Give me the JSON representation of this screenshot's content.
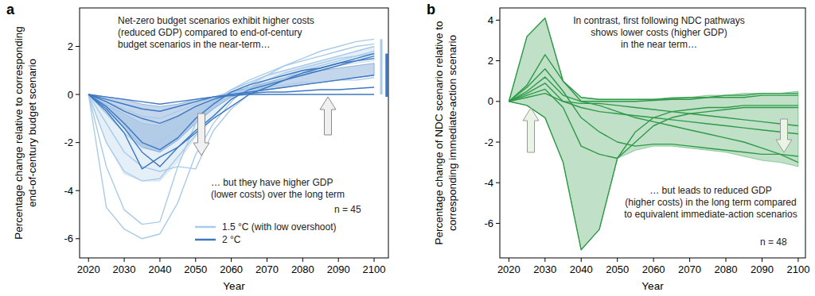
{
  "chart_data": [
    {
      "type": "line",
      "panel": "a",
      "y_label": [
        "Percentage change relative to corresponding",
        "end-of-century budget scenario"
      ],
      "x_label": "Year",
      "x": [
        2020,
        2025,
        2030,
        2035,
        2040,
        2045,
        2050,
        2055,
        2060,
        2065,
        2070,
        2075,
        2080,
        2085,
        2090,
        2095,
        2100
      ],
      "xlim": [
        2017.5,
        2104
      ],
      "xticks": [
        2020,
        2030,
        2040,
        2050,
        2060,
        2070,
        2080,
        2090,
        2100
      ],
      "ylim": [
        -6.8,
        3.6
      ],
      "yticks": [
        -6,
        -4,
        -2,
        0,
        2
      ],
      "grid": false,
      "legend": "lower left",
      "annotations": [
        {
          "text": [
            "Net-zero budget scenarios exhibit higher costs",
            "(reduced GDP) compared to end-of-century",
            "budget scenarios in the near-term…"
          ]
        },
        {
          "text": [
            "… but they have higher GDP",
            "(lower costs) over the long term"
          ]
        },
        {
          "text": [
            "n = 45"
          ]
        }
      ],
      "series": [
        {
          "type": "area",
          "color": "#a9cbe8",
          "values": [
            0,
            -0.4,
            -0.8,
            -1.2,
            -1.3,
            -0.9,
            -0.5,
            -0.2,
            0.2,
            0.5,
            0.8,
            1.0,
            1.2,
            1.4,
            1.6,
            1.8,
            2.0
          ],
          "lower": [
            0,
            -2.0,
            -3.3,
            -3.6,
            -3.6,
            -2.8,
            -1.8,
            -1.0,
            -0.2,
            0.2,
            0.4,
            0.6,
            0.8,
            1.0,
            1.2,
            1.3,
            1.4
          ]
        },
        {
          "type": "area",
          "color": "#3d78c0",
          "values": [
            0,
            -0.1,
            -0.2,
            -0.4,
            -0.5,
            -0.4,
            -0.2,
            -0.1,
            0.1,
            0.3,
            0.5,
            0.7,
            0.9,
            1.0,
            1.1,
            1.2,
            1.3
          ],
          "lower": [
            0,
            -0.6,
            -1.4,
            -2.2,
            -2.4,
            -1.9,
            -1.2,
            -0.6,
            -0.1,
            0.1,
            0.2,
            0.3,
            0.4,
            0.5,
            0.6,
            0.7,
            0.8
          ]
        },
        {
          "type": "line",
          "name": "1.5 °C (with low overshoot)",
          "color": "#a9cbe8",
          "values": [
            0,
            -4.7,
            -5.6,
            -6.0,
            -5.8,
            -4.5,
            -2.5,
            -1.2,
            -0.3,
            0.4,
            0.8,
            1.2,
            1.5,
            1.8,
            2.0,
            2.2,
            2.3
          ]
        },
        {
          "type": "line",
          "color": "#a9cbe8",
          "values": [
            0,
            -3.0,
            -4.8,
            -5.4,
            -5.3,
            -3.0,
            -1.2,
            -0.3,
            0.2,
            0.6,
            0.9,
            1.2,
            1.4,
            1.6,
            1.8,
            2.0,
            2.1
          ]
        },
        {
          "type": "line",
          "color": "#a9cbe8",
          "values": [
            0,
            -2.0,
            -3.2,
            -3.6,
            -3.5,
            -2.6,
            -1.7,
            -0.9,
            -0.2,
            0.3,
            0.6,
            0.9,
            1.1,
            1.3,
            1.5,
            1.6,
            1.7
          ]
        },
        {
          "type": "line",
          "color": "#a9cbe8",
          "values": [
            0,
            -1.2,
            -2.4,
            -3.0,
            -3.2,
            -3.0,
            -3.1,
            -1.5,
            -0.6,
            0.0,
            0.4,
            0.7,
            1.0,
            1.2,
            1.4,
            1.6,
            1.8
          ]
        },
        {
          "type": "line",
          "color": "#a9cbe8",
          "values": [
            0,
            -0.8,
            -1.6,
            -2.2,
            -2.0,
            -1.4,
            -0.8,
            -0.3,
            0.2,
            0.5,
            0.8,
            1.0,
            1.2,
            1.4,
            1.6,
            1.8,
            2.0
          ]
        },
        {
          "type": "line",
          "color": "#a9cbe8",
          "values": [
            0,
            -0.3,
            -0.6,
            -0.9,
            -1.0,
            -0.7,
            -0.4,
            -0.1,
            0.1,
            0.2,
            0.3,
            0.4,
            0.5,
            0.5,
            0.6,
            0.6,
            0.7
          ]
        },
        {
          "type": "line",
          "name": "2 °C",
          "color": "#3d78c0",
          "values": [
            0,
            -0.5,
            -1.2,
            -2.0,
            -2.3,
            -1.8,
            -1.0,
            -0.4,
            0.1,
            0.4,
            0.6,
            0.8,
            1.0,
            1.1,
            1.3,
            1.4,
            1.5
          ]
        },
        {
          "type": "line",
          "color": "#3d78c0",
          "values": [
            0,
            -0.7,
            -1.6,
            -3.1,
            -2.6,
            -2.2,
            -1.5,
            -0.9,
            -0.2,
            0.2,
            0.4,
            0.6,
            0.8,
            1.0,
            1.2,
            1.4,
            1.6
          ]
        },
        {
          "type": "line",
          "color": "#3d78c0",
          "values": [
            0,
            -0.3,
            -0.7,
            -1.0,
            -1.2,
            -0.9,
            -0.5,
            -0.2,
            0.0,
            0.1,
            0.2,
            0.3,
            0.4,
            0.5,
            0.6,
            0.7,
            0.8
          ]
        },
        {
          "type": "line",
          "color": "#3d78c0",
          "values": [
            0,
            -0.2,
            -0.4,
            -0.6,
            -0.7,
            -0.5,
            -0.3,
            -0.1,
            0.0,
            0.05,
            0.1,
            0.1,
            0.15,
            0.2,
            0.2,
            0.25,
            0.3
          ]
        },
        {
          "type": "line",
          "color": "#3d78c0",
          "values": [
            0,
            -0.6,
            -1.4,
            -2.4,
            -3.0,
            -2.2,
            -1.6,
            -1.0,
            -0.5,
            0.0,
            0.3,
            0.6,
            0.9,
            1.1,
            1.3,
            1.5,
            1.7
          ]
        },
        {
          "type": "line",
          "color": "#3d78c0",
          "values": [
            0,
            -0.1,
            -0.2,
            -0.3,
            -0.4,
            -0.3,
            -0.2,
            -0.1,
            -0.05,
            0,
            0,
            0,
            0,
            0,
            0,
            0,
            0
          ]
        }
      ],
      "range_bars": [
        {
          "x": 2102,
          "low": 0.0,
          "high": 2.3,
          "color": "#a9cbe8"
        },
        {
          "x": 2103.5,
          "low": -0.1,
          "high": 1.7,
          "color": "#3d78c0"
        }
      ]
    },
    {
      "type": "line",
      "panel": "b",
      "y_label": [
        "Percentage change of NDC scenario relative to",
        "corresponding immediate-action scenario"
      ],
      "x_label": "Year",
      "x": [
        2020,
        2025,
        2030,
        2035,
        2040,
        2045,
        2050,
        2055,
        2060,
        2065,
        2070,
        2075,
        2080,
        2085,
        2090,
        2095,
        2100
      ],
      "xlim": [
        2017.5,
        2102
      ],
      "xticks": [
        2020,
        2030,
        2040,
        2050,
        2060,
        2070,
        2080,
        2090,
        2100
      ],
      "ylim": [
        -7.7,
        4.6
      ],
      "yticks": [
        -6,
        -4,
        -2,
        0,
        2,
        4
      ],
      "grid": false,
      "annotations": [
        {
          "text": [
            "In contrast, first following NDC pathways",
            "shows lower costs (higher GDP)",
            "in the near term…"
          ]
        },
        {
          "text": [
            "… but leads to reduced GDP",
            "(higher costs) in the long term compared",
            "to equivalent immediate-action scenarios"
          ]
        },
        {
          "text": [
            "n = 48"
          ]
        }
      ],
      "series": [
        {
          "type": "area",
          "color": "#2e9a48",
          "values": [
            0,
            3.2,
            4.1,
            1.0,
            0.2,
            0.1,
            0.1,
            0.1,
            0.1,
            0.2,
            0.2,
            0.3,
            0.3,
            0.4,
            0.4,
            0.4,
            0.5
          ],
          "lower": [
            0,
            -0.2,
            -0.8,
            -3.0,
            -7.3,
            -6.3,
            -2.8,
            -2.4,
            -2.2,
            -2.2,
            -2.3,
            -2.4,
            -2.5,
            -2.7,
            -2.9,
            -3.0,
            -3.2
          ]
        },
        {
          "type": "line",
          "color": "#2e9a48",
          "values": [
            0,
            3.2,
            4.1,
            1.0,
            0.0,
            -0.2,
            -0.5,
            -0.8,
            -1.0,
            -1.2,
            -1.4,
            -1.6,
            -1.8,
            -2.0,
            -2.3,
            -2.6,
            -3.0
          ]
        },
        {
          "type": "line",
          "color": "#2e9a48",
          "values": [
            0,
            0.8,
            2.3,
            1.0,
            0.2,
            0.1,
            0.1,
            0.1,
            0.1,
            0.15,
            0.2,
            0.2,
            0.3,
            0.3,
            0.4,
            0.4,
            0.4
          ]
        },
        {
          "type": "line",
          "color": "#2e9a48",
          "values": [
            0,
            0.7,
            1.6,
            0.5,
            -0.8,
            -1.5,
            -2.0,
            -2.2,
            -2.1,
            -2.1,
            -2.2,
            -2.3,
            -2.4,
            -2.5,
            -2.6,
            -2.6,
            -2.7
          ]
        },
        {
          "type": "line",
          "color": "#2e9a48",
          "values": [
            0,
            0.4,
            0.9,
            0.0,
            -0.3,
            -0.5,
            -0.6,
            -0.7,
            -0.8,
            -0.9,
            -1.0,
            -1.1,
            -1.2,
            -1.3,
            -1.4,
            -1.5,
            -1.6
          ]
        },
        {
          "type": "line",
          "color": "#2e9a48",
          "values": [
            0,
            0.3,
            0.6,
            -0.3,
            -2.2,
            -2.6,
            -2.8,
            -2.0,
            -1.2,
            -0.8,
            -0.6,
            -0.5,
            -0.4,
            -0.3,
            -0.3,
            -0.3,
            -0.3
          ]
        },
        {
          "type": "line",
          "color": "#2e9a48",
          "values": [
            0,
            -0.2,
            -0.8,
            -3.0,
            -7.3,
            -6.3,
            -2.8,
            -1.5,
            -0.8,
            -0.5,
            -0.4,
            -0.3,
            -0.3,
            -0.2,
            -0.2,
            -0.2,
            -0.2
          ]
        },
        {
          "type": "line",
          "color": "#2e9a48",
          "values": [
            0,
            0.5,
            1.2,
            0.3,
            0.0,
            0.0,
            0.0,
            0.0,
            0.05,
            0.1,
            0.1,
            0.2,
            0.2,
            0.2,
            0.3,
            0.3,
            0.3
          ]
        },
        {
          "type": "line",
          "color": "#2e9a48",
          "values": [
            0,
            0.2,
            0.4,
            0.0,
            -0.1,
            -0.1,
            -0.2,
            -0.3,
            -0.4,
            -0.5,
            -0.6,
            -0.7,
            -0.8,
            -0.9,
            -1.0,
            -1.1,
            -1.2
          ]
        }
      ]
    }
  ]
}
